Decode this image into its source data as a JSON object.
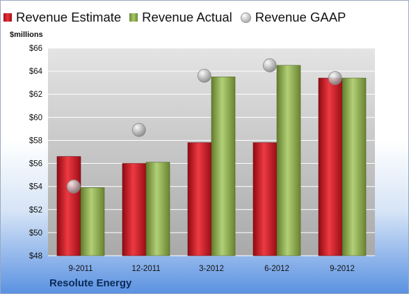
{
  "legend": {
    "estimate": "Revenue Estimate",
    "actual": "Revenue Actual",
    "gaap": "Revenue GAAP"
  },
  "unit_label": "$millions",
  "company": "Resolute Energy",
  "colors": {
    "estimate": "#d1202b",
    "actual": "#8fae52",
    "gaap": "#bdbdbd"
  },
  "chart_data": {
    "type": "bar",
    "categories": [
      "9-2011",
      "12-2011",
      "3-2012",
      "6-2012",
      "9-2012"
    ],
    "series": [
      {
        "name": "Revenue Estimate",
        "values": [
          56.6,
          56.0,
          57.8,
          57.8,
          63.4
        ]
      },
      {
        "name": "Revenue Actual",
        "values": [
          53.9,
          56.1,
          63.5,
          64.5,
          63.4
        ]
      },
      {
        "name": "Revenue GAAP",
        "type": "scatter",
        "values": [
          54.0,
          58.9,
          63.6,
          64.5,
          63.4
        ]
      }
    ],
    "ylabel": "$millions",
    "ylim": [
      48,
      66
    ],
    "yticks": [
      48,
      50,
      52,
      54,
      56,
      58,
      60,
      62,
      64,
      66
    ],
    "ytick_labels": [
      "$48",
      "$50",
      "$52",
      "$54",
      "$56",
      "$58",
      "$60",
      "$62",
      "$64",
      "$66"
    ],
    "grid": true,
    "legend_position": "top"
  }
}
